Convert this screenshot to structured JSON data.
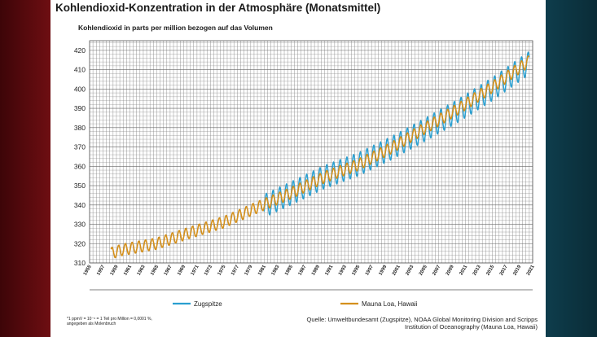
{
  "page": {
    "title": "Kohlendioxid-Konzentration in der Atmosphäre (Monatsmittel)",
    "subtitle": "Kohlendioxid in parts per million bezogen auf das Volumen",
    "footnote_line1": "1 ppmV = 10⁻⁶ = 1 Teil pro Million = 0,0001 %,",
    "footnote_line2": "angegeben als Molenbruch",
    "footnote_marker": "*",
    "source_line1": "Quelle: Umweltbundesamt (Zugspitze), NOAA Global Monitoring Division and Scripps",
    "source_line2": "Institution of Oceanography  (Mauna Loa, Hawaii)"
  },
  "colors": {
    "zugspitze": "#2a9fd0",
    "mauna_loa": "#d4901c",
    "grid": "#8a8a8a",
    "side_left": "#5a0a0e",
    "side_right": "#0c3340"
  },
  "chart_data": {
    "type": "line",
    "title": "Kohlendioxid-Konzentration in der Atmosphäre (Monatsmittel)",
    "ylabel": "Kohlendioxid in parts per million bezogen auf das Volumen",
    "xlim": [
      1955,
      2021
    ],
    "ylim": [
      310,
      425
    ],
    "x_ticks": [
      1955,
      1957,
      1959,
      1961,
      1963,
      1965,
      1967,
      1969,
      1971,
      1973,
      1975,
      1977,
      1979,
      1981,
      1983,
      1985,
      1987,
      1989,
      1991,
      1993,
      1995,
      1997,
      1999,
      2001,
      2003,
      2005,
      2007,
      2009,
      2011,
      2013,
      2015,
      2017,
      2019,
      2021
    ],
    "y_ticks": [
      310,
      320,
      330,
      340,
      350,
      360,
      370,
      380,
      390,
      400,
      410,
      420
    ],
    "grid": true,
    "legend_position": "bottom",
    "series": [
      {
        "name": "Zugspitze",
        "color": "#2a9fd0",
        "x_start": 1981,
        "x_end": 2020.5,
        "seasonal_amplitude": 6,
        "trend": [
          [
            1981,
            339.5
          ],
          [
            1985,
            346
          ],
          [
            1990,
            354.5
          ],
          [
            1995,
            361
          ],
          [
            2000,
            369.5
          ],
          [
            2005,
            379
          ],
          [
            2010,
            389
          ],
          [
            2015,
            400
          ],
          [
            2020.5,
            413.5
          ]
        ]
      },
      {
        "name": "Mauna Loa, Hawaii",
        "color": "#d4901c",
        "x_start": 1958.2,
        "x_end": 2020.5,
        "seasonal_amplitude": 3,
        "trend": [
          [
            1958.2,
            315
          ],
          [
            1960,
            316.9
          ],
          [
            1965,
            320
          ],
          [
            1970,
            325.7
          ],
          [
            1975,
            331.1
          ],
          [
            1980,
            338.8
          ],
          [
            1985,
            346.1
          ],
          [
            1990,
            354.4
          ],
          [
            1995,
            360.8
          ],
          [
            2000,
            369.6
          ],
          [
            2005,
            379.8
          ],
          [
            2010,
            389.9
          ],
          [
            2015,
            401
          ],
          [
            2020.5,
            414.5
          ]
        ]
      }
    ]
  }
}
